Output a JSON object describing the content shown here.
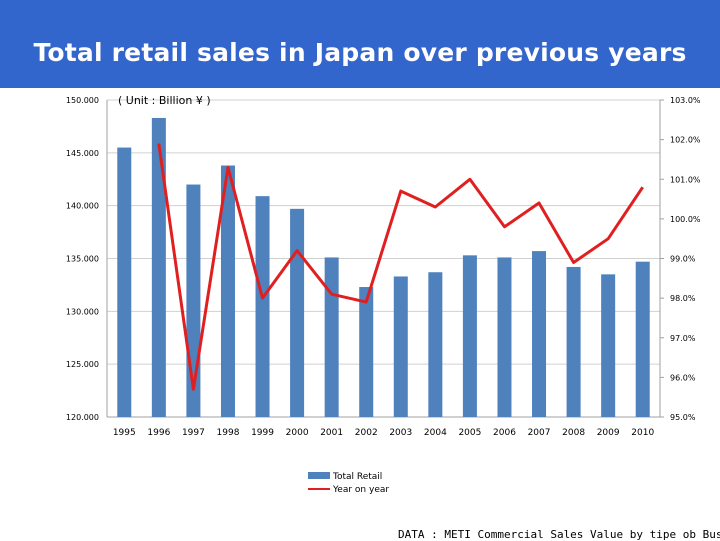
{
  "slide": {
    "title": "Total retail sales in Japan over previous years",
    "source": "DATA : METI Commercial Sales Value by tipe ob Business"
  },
  "colors": {
    "header": "#3366cc",
    "bar": "#4f81bd",
    "line": "#e02020"
  },
  "chart_data": {
    "type": "bar",
    "unit_label": "( Unit : Billion ¥ )",
    "categories": [
      "1995",
      "1996",
      "1997",
      "1998",
      "1999",
      "2000",
      "2001",
      "2002",
      "2003",
      "2004",
      "2005",
      "2006",
      "2007",
      "2008",
      "2009",
      "2010"
    ],
    "series": [
      {
        "name": "Total Retail",
        "type": "bar",
        "axis": "left",
        "values": [
          145.5,
          148.3,
          142.0,
          143.8,
          140.9,
          139.7,
          135.1,
          132.3,
          133.3,
          133.7,
          135.3,
          135.1,
          135.7,
          134.2,
          133.5,
          134.7
        ]
      },
      {
        "name": "Year on year",
        "type": "line",
        "axis": "right",
        "values": [
          null,
          101.9,
          95.7,
          101.3,
          98.0,
          99.2,
          98.1,
          97.9,
          100.7,
          100.3,
          101.0,
          99.8,
          100.4,
          98.9,
          99.5,
          100.8
        ]
      }
    ],
    "y_left": {
      "min": 120,
      "max": 150,
      "ticks": [
        120,
        125,
        130,
        135,
        140,
        145,
        150
      ],
      "tick_labels": [
        "120.000",
        "125.000",
        "130.000",
        "135.000",
        "140.000",
        "145.000",
        "150.000"
      ]
    },
    "y_right": {
      "min": 95,
      "max": 103,
      "ticks": [
        95,
        96,
        97,
        98,
        99,
        100,
        101,
        102,
        103
      ],
      "tick_labels": [
        "95.0%",
        "96.0%",
        "97.0%",
        "98.0%",
        "99.0%",
        "100.0%",
        "101.0%",
        "102.0%",
        "103.0%"
      ]
    },
    "grid": "horizontal",
    "legend": {
      "position": "bottom",
      "entries": [
        "Total Retail",
        "Year on year"
      ]
    }
  }
}
